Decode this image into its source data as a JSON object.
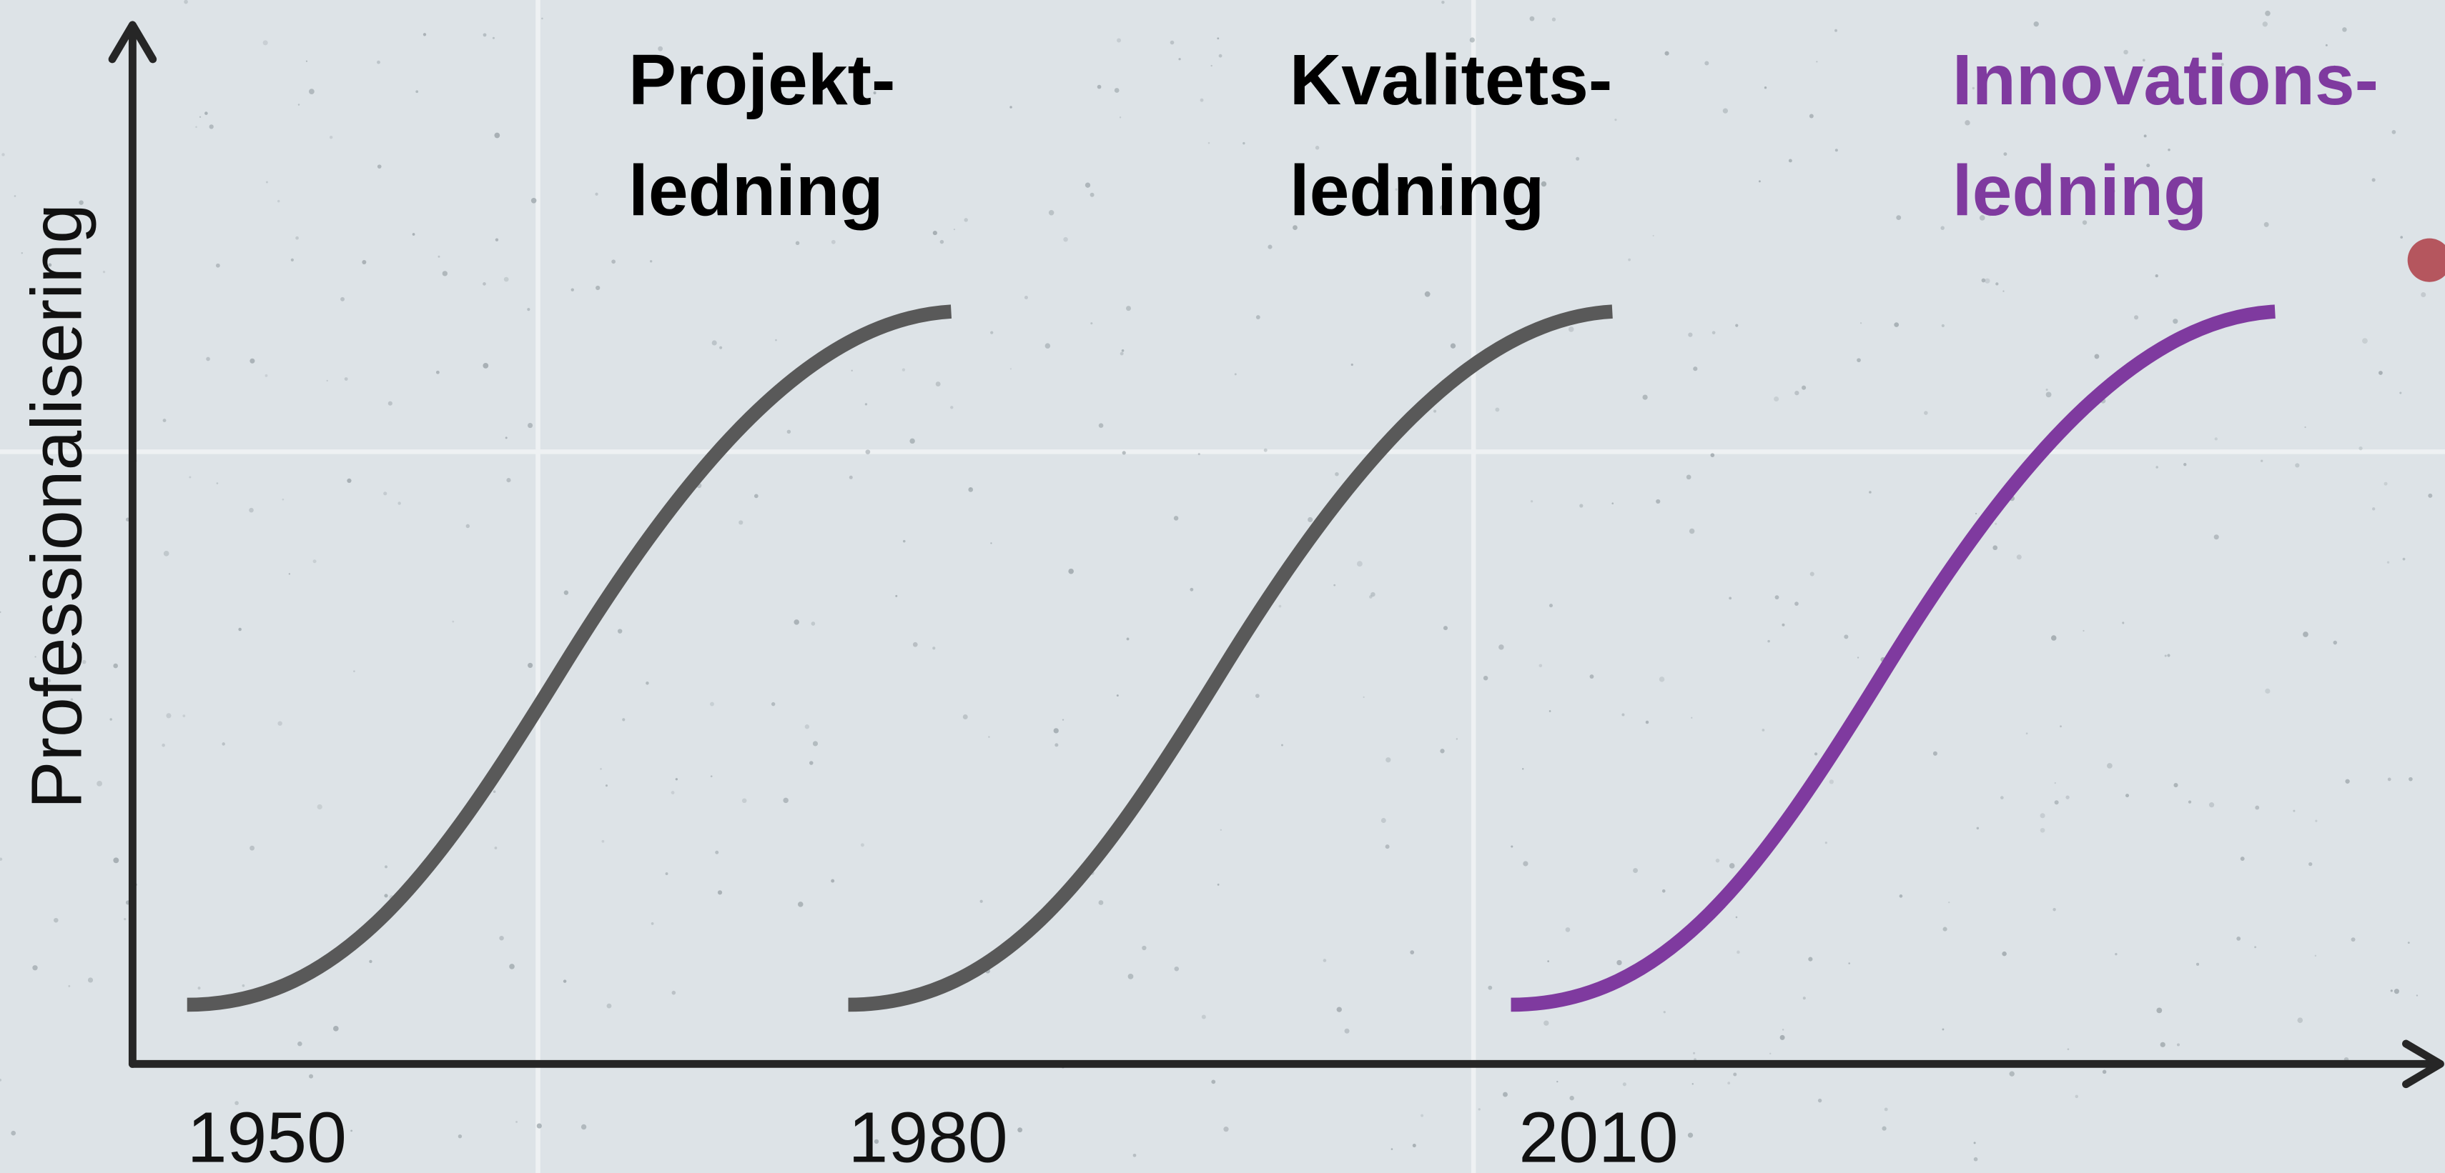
{
  "axis": {
    "y_label": "Professionalisering"
  },
  "curves": [
    {
      "label_lines": [
        "Projekt-",
        "ledning"
      ],
      "year": "1950",
      "color": "#595959"
    },
    {
      "label_lines": [
        "Kvalitets-",
        "ledning"
      ],
      "year": "1980",
      "color": "#595959"
    },
    {
      "label_lines": [
        "Innovations-",
        "ledning"
      ],
      "year": "2010",
      "color": "#7f3a9f"
    }
  ]
}
